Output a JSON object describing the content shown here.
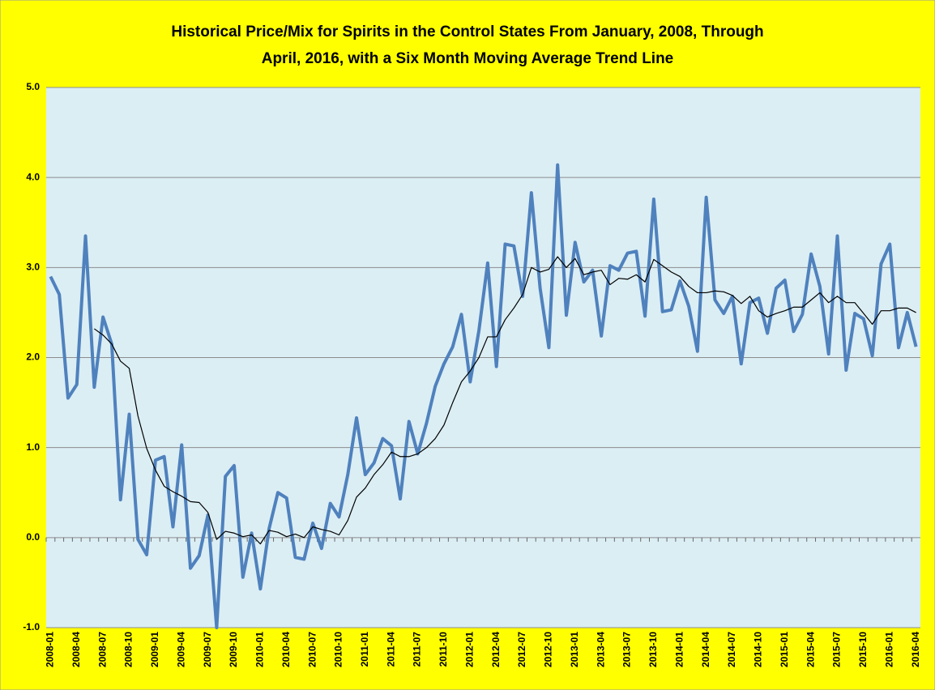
{
  "chart_data": {
    "type": "line",
    "title": [
      "Historical Price/Mix for Spirits in the Control States From January, 2008, Through",
      "April, 2016, with a Six Month Moving Average Trend Line"
    ],
    "categories": [
      "2008-01",
      null,
      null,
      "2008-04",
      null,
      null,
      "2008-07",
      null,
      null,
      "2008-10",
      null,
      null,
      "2009-01",
      null,
      null,
      "2009-04",
      null,
      null,
      "2009-07",
      null,
      null,
      "2009-10",
      null,
      null,
      "2010-01",
      null,
      null,
      "2010-04",
      null,
      null,
      "2010-07",
      null,
      null,
      "2010-10",
      null,
      null,
      "2011-01",
      null,
      null,
      "2011-04",
      null,
      null,
      "2011-07",
      null,
      null,
      "2011-10",
      null,
      null,
      "2012-01",
      null,
      null,
      "2012-04",
      null,
      null,
      "2012-07",
      null,
      null,
      "2012-10",
      null,
      null,
      "2013-01",
      null,
      null,
      "2013-04",
      null,
      null,
      "2013-07",
      null,
      null,
      "2013-10",
      null,
      null,
      "2014-01",
      null,
      null,
      "2014-04",
      null,
      null,
      "2014-07",
      null,
      null,
      "2014-10",
      null,
      null,
      "2015-01",
      null,
      null,
      "2015-04",
      null,
      null,
      "2015-07",
      null,
      null,
      "2015-10",
      null,
      null,
      "2016-01",
      null,
      null,
      "2016-04"
    ],
    "series": [
      {
        "color": "#4f81bd",
        "values": [
          2.9,
          2.7,
          1.55,
          1.7,
          3.35,
          1.67,
          2.45,
          2.15,
          0.42,
          1.37,
          -0.02,
          -0.19,
          0.86,
          0.9,
          0.12,
          1.03,
          -0.34,
          -0.2,
          0.25,
          -1.0,
          0.68,
          0.8,
          -0.44,
          0.05,
          -0.57,
          0.1,
          0.5,
          0.44,
          -0.22,
          -0.24,
          0.16,
          -0.12,
          0.38,
          0.23,
          0.7,
          1.33,
          0.7,
          0.83,
          1.1,
          1.02,
          0.43,
          1.29,
          0.93,
          1.27,
          1.68,
          1.93,
          2.12,
          2.48,
          1.73,
          2.3,
          3.05,
          1.9,
          3.26,
          3.24,
          2.68,
          3.83,
          2.77,
          2.11,
          4.14,
          2.47,
          3.28,
          2.84,
          2.97,
          2.24,
          3.02,
          2.97,
          3.16,
          3.18,
          2.46,
          3.76,
          2.51,
          2.53,
          2.85,
          2.57,
          2.07,
          3.78,
          2.64,
          2.49,
          2.68,
          1.93,
          2.61,
          2.66,
          2.27,
          2.77,
          2.86,
          2.29,
          2.48,
          3.15,
          2.79,
          2.04,
          3.35,
          1.86,
          2.49,
          2.43,
          2.02,
          3.04,
          3.26,
          2.11,
          2.5,
          2.12
        ]
      },
      {
        "color": "#000000",
        "values": [
          null,
          null,
          null,
          null,
          null,
          2.32,
          2.25,
          2.15,
          1.96,
          1.88,
          1.35,
          0.99,
          0.75,
          0.57,
          0.51,
          0.46,
          0.4,
          0.39,
          0.28,
          -0.02,
          0.07,
          0.05,
          0.01,
          0.03,
          -0.07,
          0.08,
          0.06,
          0.01,
          0.04,
          0.0,
          0.12,
          0.09,
          0.07,
          0.03,
          0.19,
          0.45,
          0.55,
          0.7,
          0.81,
          0.95,
          0.9,
          0.9,
          0.93,
          1.0,
          1.1,
          1.25,
          1.5,
          1.73,
          1.85,
          2.0,
          2.23,
          2.23,
          2.42,
          2.55,
          2.7,
          3.0,
          2.95,
          2.98,
          3.12,
          3.0,
          3.1,
          2.92,
          2.95,
          2.97,
          2.81,
          2.88,
          2.87,
          2.92,
          2.84,
          3.09,
          3.02,
          2.95,
          2.9,
          2.79,
          2.72,
          2.72,
          2.74,
          2.73,
          2.69,
          2.6,
          2.68,
          2.52,
          2.45,
          2.49,
          2.52,
          2.56,
          2.56,
          2.64,
          2.72,
          2.61,
          2.68,
          2.61,
          2.61,
          2.49,
          2.37,
          2.52,
          2.52,
          2.55,
          2.55,
          2.5
        ]
      }
    ],
    "ylim": [
      -1,
      5
    ],
    "yticks": [
      {
        "value": -1,
        "label": "-1.0"
      },
      {
        "value": 0,
        "label": "0.0"
      },
      {
        "value": 1,
        "label": "1.0"
      },
      {
        "value": 2,
        "label": "2.0"
      },
      {
        "value": 3,
        "label": "3.0"
      },
      {
        "value": 4,
        "label": "4.0"
      },
      {
        "value": 5,
        "label": "5.0"
      }
    ],
    "grid": true
  }
}
